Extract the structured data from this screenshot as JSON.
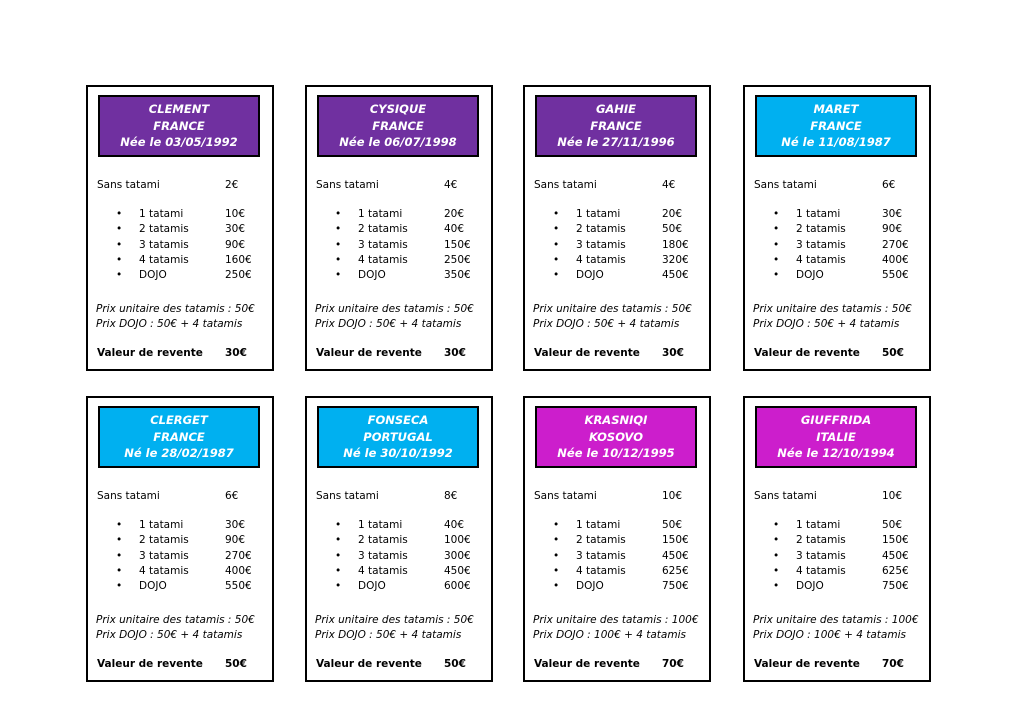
{
  "labels": {
    "sans_tatami": "Sans tatami",
    "bullet": "•",
    "levels": [
      "1 tatami",
      "2 tatamis",
      "3 tatamis",
      "4 tatamis",
      "DOJO"
    ],
    "resale": "Valeur de revente"
  },
  "colors": {
    "purple": "#7030a0",
    "cyan": "#00b0f0",
    "magenta": "#cc1ecc"
  },
  "cards": [
    {
      "name": "CLEMENT",
      "country": "FRANCE",
      "born": "Née le 03/05/1992",
      "color": "#7030a0",
      "sans_tatami": "2€",
      "prices": [
        "10€",
        "30€",
        "90€",
        "160€",
        "250€"
      ],
      "tatami_price": "Prix unitaire des tatamis : 50€",
      "dojo_price": "Prix DOJO : 50€ + 4 tatamis",
      "resale": "30€"
    },
    {
      "name": "CYSIQUE",
      "country": "FRANCE",
      "born": "Née le 06/07/1998",
      "color": "#7030a0",
      "sans_tatami": "4€",
      "prices": [
        "20€",
        "40€",
        "150€",
        "250€",
        "350€"
      ],
      "tatami_price": "Prix unitaire des tatamis : 50€",
      "dojo_price": "Prix DOJO : 50€ + 4 tatamis",
      "resale": "30€"
    },
    {
      "name": "GAHIE",
      "country": "FRANCE",
      "born": "Née le 27/11/1996",
      "color": "#7030a0",
      "sans_tatami": "4€",
      "prices": [
        "20€",
        "50€",
        "180€",
        "320€",
        "450€"
      ],
      "tatami_price": "Prix unitaire des tatamis : 50€",
      "dojo_price": "Prix DOJO : 50€ + 4 tatamis",
      "resale": "30€"
    },
    {
      "name": "MARET",
      "country": "FRANCE",
      "born": "Né le 11/08/1987",
      "color": "#00b0f0",
      "sans_tatami": "6€",
      "prices": [
        "30€",
        "90€",
        "270€",
        "400€",
        "550€"
      ],
      "tatami_price": "Prix unitaire des tatamis : 50€",
      "dojo_price": "Prix DOJO : 50€ + 4 tatamis",
      "resale": "50€"
    },
    {
      "name": "CLERGET",
      "country": "FRANCE",
      "born": "Né le 28/02/1987",
      "color": "#00b0f0",
      "sans_tatami": "6€",
      "prices": [
        "30€",
        "90€",
        "270€",
        "400€",
        "550€"
      ],
      "tatami_price": "Prix unitaire des tatamis : 50€",
      "dojo_price": "Prix DOJO : 50€ + 4 tatamis",
      "resale": "50€"
    },
    {
      "name": "FONSECA",
      "country": "PORTUGAL",
      "born": "Né le 30/10/1992",
      "color": "#00b0f0",
      "sans_tatami": "8€",
      "prices": [
        "40€",
        "100€",
        "300€",
        "450€",
        "600€"
      ],
      "tatami_price": "Prix unitaire des tatamis : 50€",
      "dojo_price": "Prix DOJO : 50€ + 4 tatamis",
      "resale": "50€"
    },
    {
      "name": "KRASNIQI",
      "country": "KOSOVO",
      "born": "Née le 10/12/1995",
      "color": "#cc1ecc",
      "sans_tatami": "10€",
      "prices": [
        "50€",
        "150€",
        "450€",
        "625€",
        "750€"
      ],
      "tatami_price": "Prix unitaire des tatamis : 100€",
      "dojo_price": "Prix DOJO : 100€ + 4 tatamis",
      "resale": "70€"
    },
    {
      "name": "GIUFFRIDA",
      "country": "ITALIE",
      "born": "Née le 12/10/1994",
      "color": "#cc1ecc",
      "sans_tatami": "10€",
      "prices": [
        "50€",
        "150€",
        "450€",
        "625€",
        "750€"
      ],
      "tatami_price": "Prix unitaire des tatamis : 100€",
      "dojo_price": "Prix DOJO : 100€ + 4 tatamis",
      "resale": "70€"
    }
  ]
}
